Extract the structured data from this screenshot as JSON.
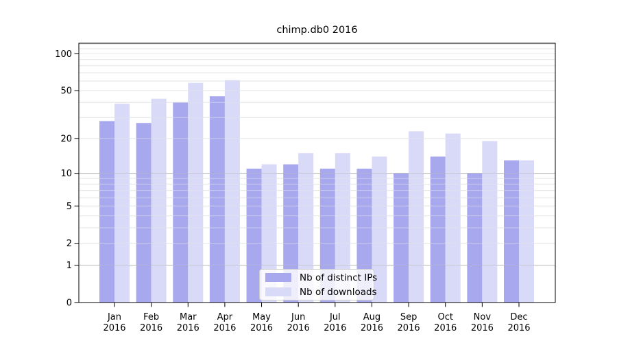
{
  "chart_data": {
    "type": "bar",
    "title": "chimp.db0 2016",
    "y_scale": "log1p",
    "ylim": [
      0,
      122
    ],
    "grid": true,
    "legend_position": "lower center inside plot",
    "categories": [
      "Jan",
      "Feb",
      "Mar",
      "Apr",
      "May",
      "Jun",
      "Jul",
      "Aug",
      "Sep",
      "Oct",
      "Nov",
      "Dec"
    ],
    "x_tick_year": "2016",
    "series": [
      {
        "name": "Nb of distinct IPs",
        "color": "#a8a8ef",
        "values": [
          28,
          27,
          40,
          45,
          11,
          12,
          11,
          11,
          10,
          14,
          10,
          13
        ]
      },
      {
        "name": "Nb of downloads",
        "color": "#d9d9f8",
        "values": [
          39,
          43,
          58,
          61,
          12,
          15,
          15,
          14,
          23,
          22,
          19,
          13
        ]
      }
    ],
    "yticks": [
      0,
      1,
      2,
      5,
      10,
      20,
      50,
      100
    ],
    "gridlines": {
      "major": [
        1,
        10
      ],
      "minor": [
        2,
        3,
        4,
        5,
        6,
        7,
        8,
        9,
        20,
        30,
        40,
        50,
        60,
        70,
        80,
        90,
        100,
        110,
        120
      ]
    },
    "colors": {
      "spine": "#000000",
      "grid_minor": "#e7e7e7",
      "grid_major": "#b8b8b8",
      "text": "#000000",
      "background": "#ffffff"
    }
  }
}
